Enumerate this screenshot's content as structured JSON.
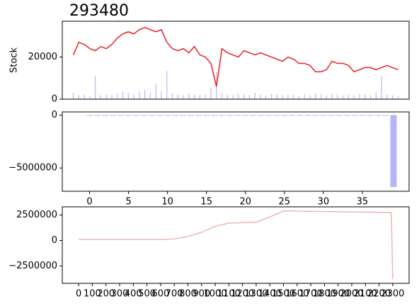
{
  "chart_data": [
    {
      "type": "line",
      "title": "293480",
      "y_label": "Stock",
      "color": "#e8202a",
      "x": [
        0,
        1,
        2,
        3,
        4,
        5,
        6,
        7,
        8,
        9,
        10,
        11,
        12,
        13,
        14,
        15,
        16,
        17,
        18,
        19,
        20,
        21,
        22,
        23,
        24,
        25,
        26,
        27,
        28,
        29,
        30,
        31,
        32,
        33,
        34,
        35,
        36,
        37,
        38,
        39,
        40,
        41,
        42,
        43,
        44,
        45,
        46,
        47,
        48,
        49,
        50,
        51,
        52,
        53,
        54,
        55,
        56,
        57,
        58,
        59
      ],
      "values": [
        21000,
        27000,
        26000,
        24000,
        23000,
        25000,
        24000,
        26000,
        29000,
        31000,
        32000,
        31000,
        33000,
        34000,
        33000,
        32000,
        33000,
        27000,
        24000,
        23000,
        24000,
        22000,
        25000,
        21000,
        20000,
        17000,
        6000,
        24000,
        22000,
        21000,
        20000,
        23000,
        22000,
        21000,
        22000,
        21000,
        20000,
        19000,
        18000,
        20000,
        19000,
        17000,
        17000,
        16000,
        13000,
        13000,
        14000,
        18000,
        17000,
        17000,
        16000,
        13000,
        14000,
        15000,
        15000,
        14000,
        15000,
        16000,
        15000,
        14000
      ],
      "volume_values": [
        8,
        5,
        6,
        4,
        30,
        5,
        6,
        5,
        7,
        10,
        8,
        6,
        9,
        12,
        8,
        20,
        10,
        36,
        8,
        6,
        5,
        7,
        6,
        5,
        6,
        15,
        35,
        8,
        6,
        5,
        7,
        6,
        5,
        8,
        6,
        5,
        7,
        6,
        5,
        6,
        5,
        4,
        6,
        5,
        8,
        6,
        5,
        7,
        6,
        5,
        6,
        5,
        7,
        6,
        5,
        9,
        30,
        6,
        5,
        4
      ],
      "volume_color": "#8c8cf0",
      "xlim": [
        -2,
        61
      ],
      "ylim": [
        0,
        37000
      ],
      "yticks": [
        0,
        20000
      ],
      "y2lim": [
        0,
        100
      ]
    },
    {
      "type": "bar",
      "color": "#b4b4f8",
      "x": [
        0,
        1,
        2,
        3,
        4,
        5,
        6,
        7,
        8,
        9,
        10,
        11,
        12,
        13,
        14,
        15,
        16,
        17,
        18,
        19,
        20,
        21,
        22,
        23,
        24,
        25,
        26,
        27,
        28,
        29,
        30,
        31,
        32,
        33,
        34,
        35,
        36,
        37,
        38,
        39
      ],
      "values": [
        0,
        0,
        0,
        0,
        0,
        0,
        0,
        0,
        -20000,
        0,
        0,
        0,
        0,
        0,
        -20000,
        -20000,
        -20000,
        -20000,
        -20000,
        -20000,
        -20000,
        -20000,
        -20000,
        -20000,
        -20000,
        -20000,
        -20000,
        -20000,
        -20000,
        0,
        0,
        -40000,
        -40000,
        -40000,
        -40000,
        -40000,
        -40000,
        -40000,
        -40000,
        -6800000
      ],
      "xlim": [
        -3.5,
        41
      ],
      "xticks": [
        0,
        5,
        10,
        15,
        20,
        25,
        30,
        35
      ],
      "ylim": [
        -7200000,
        300000
      ],
      "yticks": [
        {
          "value": -5000000,
          "label": "−5000000"
        },
        0
      ]
    },
    {
      "type": "line",
      "color": "#f4b4b4",
      "x": [
        0,
        100,
        200,
        300,
        400,
        500,
        600,
        700,
        800,
        900,
        1000,
        1100,
        1200,
        1300,
        1400,
        1500,
        1600,
        1700,
        1800,
        1900,
        2000,
        2100,
        2200,
        2290,
        2300
      ],
      "values": [
        100000,
        100000,
        100000,
        100000,
        100000,
        100000,
        100000,
        150000,
        400000,
        800000,
        1400000,
        1700000,
        1750000,
        1800000,
        2300000,
        2900000,
        2880000,
        2860000,
        2840000,
        2820000,
        2800000,
        2780000,
        2760000,
        2740000,
        -3800000
      ],
      "xlim": [
        -120,
        2420
      ],
      "xticks": [
        0,
        100,
        200,
        300,
        400,
        500,
        600,
        700,
        800,
        900,
        1000,
        1100,
        1200,
        1300,
        1400,
        1500,
        1600,
        1700,
        1800,
        1900,
        2000,
        2100,
        2200,
        2300
      ],
      "ylim": [
        -4200000,
        3300000
      ],
      "yticks": [
        {
          "value": -2500000,
          "label": "−2500000"
        },
        0,
        2500000
      ]
    }
  ]
}
